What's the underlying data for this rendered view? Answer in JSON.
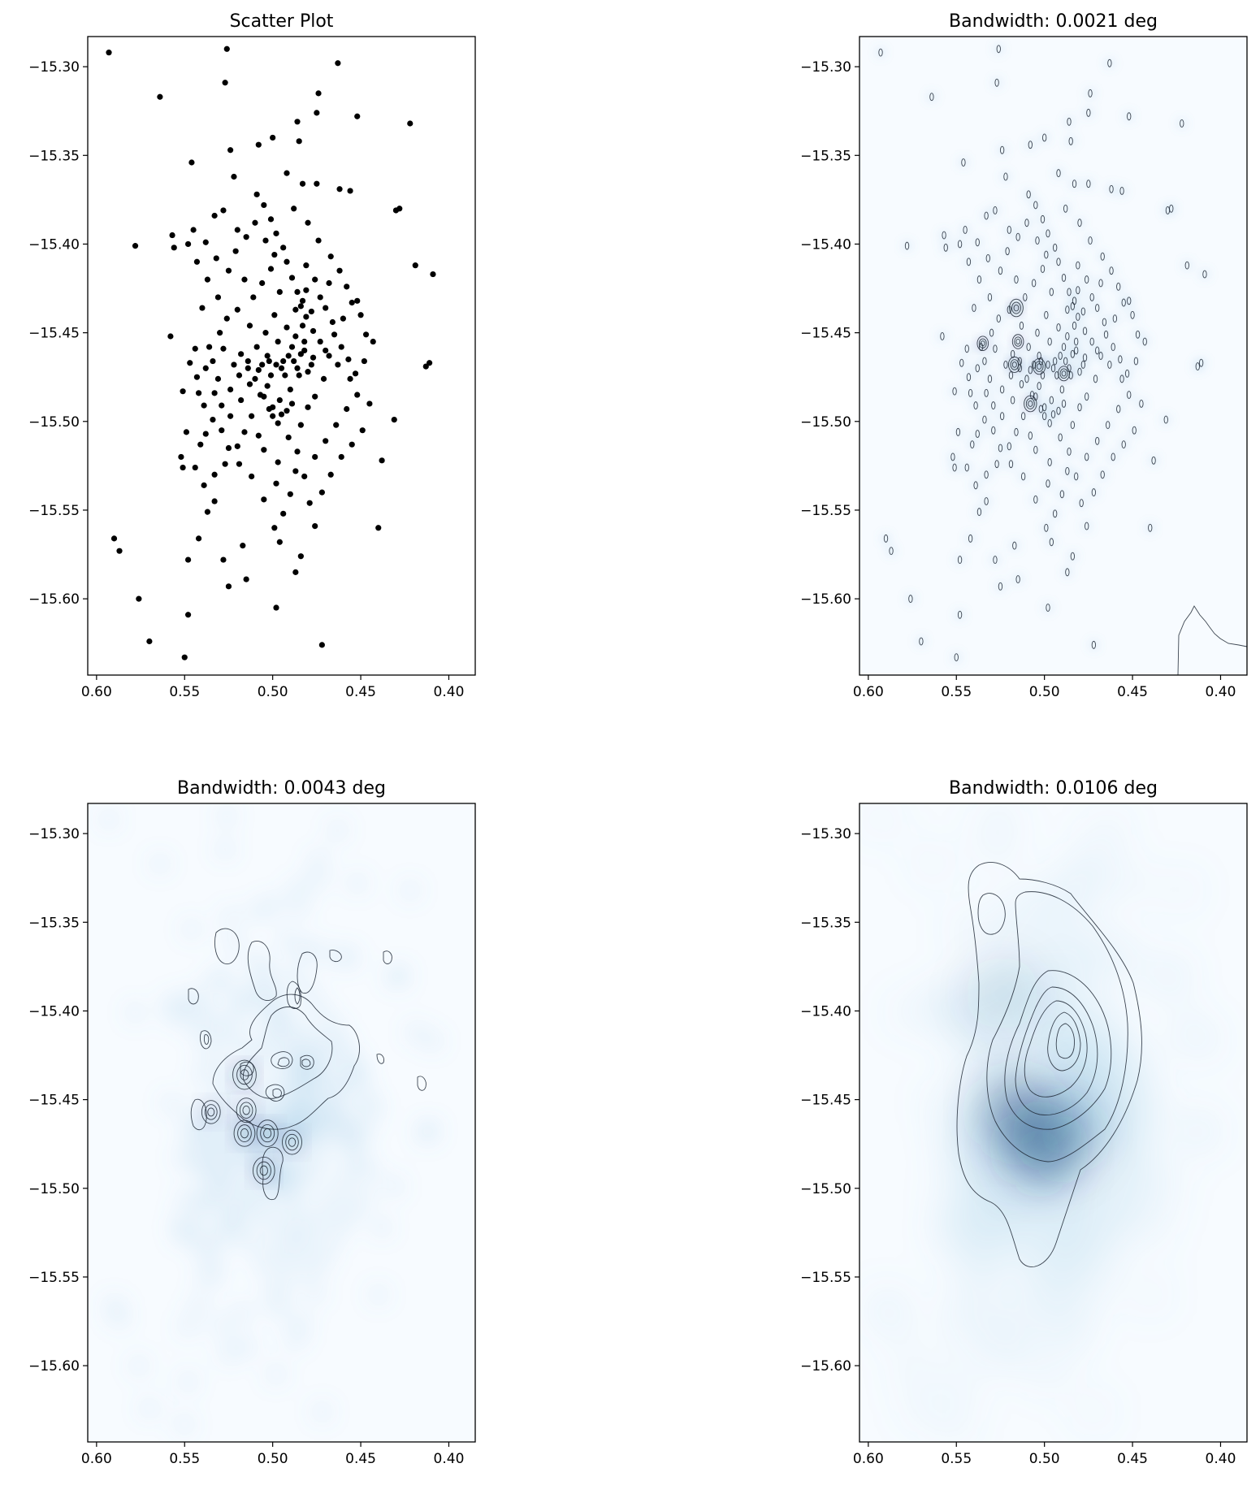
{
  "chart_data": [
    {
      "id": "scatter",
      "type": "scatter",
      "title": "Scatter Plot",
      "xlabel": "",
      "ylabel": "",
      "xlim": [
        0.605,
        0.385
      ],
      "ylim": [
        -15.643,
        -15.283
      ],
      "xticks": [
        0.6,
        0.55,
        0.5,
        0.45,
        0.4
      ],
      "xtick_labels": [
        "0.60",
        "0.55",
        "0.50",
        "0.45",
        "0.40"
      ],
      "yticks": [
        -15.3,
        -15.35,
        -15.4,
        -15.45,
        -15.5,
        -15.55,
        -15.6
      ],
      "ytick_labels": [
        "−15.30",
        "−15.35",
        "−15.40",
        "−15.45",
        "−15.50",
        "−15.55",
        "−15.60"
      ],
      "points_xy": [
        [
          0.593,
          -15.292
        ],
        [
          0.564,
          -15.317
        ],
        [
          0.526,
          -15.29
        ],
        [
          0.527,
          -15.309
        ],
        [
          0.463,
          -15.298
        ],
        [
          0.474,
          -15.315
        ],
        [
          0.475,
          -15.326
        ],
        [
          0.452,
          -15.328
        ],
        [
          0.422,
          -15.332
        ],
        [
          0.486,
          -15.331
        ],
        [
          0.485,
          -15.342
        ],
        [
          0.5,
          -15.34
        ],
        [
          0.508,
          -15.344
        ],
        [
          0.524,
          -15.347
        ],
        [
          0.546,
          -15.354
        ],
        [
          0.492,
          -15.36
        ],
        [
          0.522,
          -15.362
        ],
        [
          0.483,
          -15.366
        ],
        [
          0.475,
          -15.366
        ],
        [
          0.462,
          -15.369
        ],
        [
          0.456,
          -15.37
        ],
        [
          0.578,
          -15.401
        ],
        [
          0.59,
          -15.566
        ],
        [
          0.587,
          -15.573
        ],
        [
          0.576,
          -15.6
        ],
        [
          0.57,
          -15.624
        ],
        [
          0.548,
          -15.609
        ],
        [
          0.55,
          -15.633
        ],
        [
          0.472,
          -15.626
        ],
        [
          0.498,
          -15.605
        ],
        [
          0.548,
          -15.578
        ],
        [
          0.525,
          -15.593
        ],
        [
          0.515,
          -15.589
        ],
        [
          0.487,
          -15.585
        ],
        [
          0.484,
          -15.576
        ],
        [
          0.517,
          -15.57
        ],
        [
          0.528,
          -15.578
        ],
        [
          0.496,
          -15.568
        ],
        [
          0.44,
          -15.56
        ],
        [
          0.476,
          -15.559
        ],
        [
          0.499,
          -15.56
        ],
        [
          0.494,
          -15.552
        ],
        [
          0.533,
          -15.545
        ],
        [
          0.537,
          -15.551
        ],
        [
          0.542,
          -15.566
        ],
        [
          0.411,
          -15.467
        ],
        [
          0.413,
          -15.469
        ],
        [
          0.409,
          -15.417
        ],
        [
          0.419,
          -15.412
        ],
        [
          0.43,
          -15.381
        ],
        [
          0.428,
          -15.38
        ],
        [
          0.431,
          -15.499
        ],
        [
          0.438,
          -15.522
        ],
        [
          0.447,
          -15.451
        ],
        [
          0.443,
          -15.455
        ],
        [
          0.45,
          -15.44
        ],
        [
          0.452,
          -15.432
        ],
        [
          0.558,
          -15.452
        ],
        [
          0.557,
          -15.395
        ],
        [
          0.556,
          -15.402
        ],
        [
          0.54,
          -15.436
        ],
        [
          0.544,
          -15.459
        ],
        [
          0.551,
          -15.483
        ],
        [
          0.552,
          -15.52
        ],
        [
          0.551,
          -15.526
        ],
        [
          0.538,
          -15.507
        ],
        [
          0.541,
          -15.513
        ],
        [
          0.533,
          -15.484
        ],
        [
          0.531,
          -15.476
        ],
        [
          0.533,
          -15.384
        ],
        [
          0.528,
          -15.381
        ],
        [
          0.52,
          -15.392
        ],
        [
          0.516,
          -15.42
        ],
        [
          0.52,
          -15.437
        ],
        [
          0.513,
          -15.446
        ],
        [
          0.518,
          -15.462
        ],
        [
          0.506,
          -15.468
        ],
        [
          0.503,
          -15.48
        ],
        [
          0.5,
          -15.492
        ],
        [
          0.495,
          -15.496
        ],
        [
          0.508,
          -15.508
        ],
        [
          0.505,
          -15.516
        ],
        [
          0.497,
          -15.523
        ],
        [
          0.487,
          -15.528
        ],
        [
          0.484,
          -15.502
        ],
        [
          0.48,
          -15.492
        ],
        [
          0.476,
          -15.486
        ],
        [
          0.471,
          -15.476
        ],
        [
          0.468,
          -15.463
        ],
        [
          0.473,
          -15.455
        ],
        [
          0.477,
          -15.449
        ],
        [
          0.481,
          -15.441
        ],
        [
          0.484,
          -15.435
        ],
        [
          0.486,
          -15.427
        ],
        [
          0.489,
          -15.419
        ],
        [
          0.492,
          -15.41
        ],
        [
          0.494,
          -15.402
        ],
        [
          0.498,
          -15.394
        ],
        [
          0.501,
          -15.386
        ],
        [
          0.505,
          -15.378
        ],
        [
          0.509,
          -15.372
        ],
        [
          0.488,
          -15.38
        ],
        [
          0.48,
          -15.388
        ],
        [
          0.474,
          -15.398
        ],
        [
          0.467,
          -15.407
        ],
        [
          0.462,
          -15.415
        ],
        [
          0.458,
          -15.424
        ],
        [
          0.455,
          -15.433
        ],
        [
          0.46,
          -15.442
        ],
        [
          0.465,
          -15.451
        ],
        [
          0.47,
          -15.46
        ],
        [
          0.463,
          -15.468
        ],
        [
          0.456,
          -15.476
        ],
        [
          0.452,
          -15.485
        ],
        [
          0.458,
          -15.493
        ],
        [
          0.464,
          -15.502
        ],
        [
          0.47,
          -15.511
        ],
        [
          0.476,
          -15.52
        ],
        [
          0.482,
          -15.531
        ],
        [
          0.49,
          -15.541
        ],
        [
          0.498,
          -15.535
        ],
        [
          0.505,
          -15.544
        ],
        [
          0.512,
          -15.531
        ],
        [
          0.519,
          -15.524
        ],
        [
          0.525,
          -15.515
        ],
        [
          0.529,
          -15.505
        ],
        [
          0.524,
          -15.497
        ],
        [
          0.518,
          -15.488
        ],
        [
          0.513,
          -15.479
        ],
        [
          0.508,
          -15.471
        ],
        [
          0.503,
          -15.463
        ],
        [
          0.497,
          -15.455
        ],
        [
          0.492,
          -15.447
        ],
        [
          0.487,
          -15.452
        ],
        [
          0.482,
          -15.46
        ],
        [
          0.478,
          -15.468
        ],
        [
          0.485,
          -15.474
        ],
        [
          0.49,
          -15.482
        ],
        [
          0.496,
          -15.488
        ],
        [
          0.501,
          -15.474
        ],
        [
          0.494,
          -15.466
        ],
        [
          0.489,
          -15.458
        ],
        [
          0.483,
          -15.446
        ],
        [
          0.478,
          -15.438
        ],
        [
          0.473,
          -15.43
        ],
        [
          0.468,
          -15.422
        ],
        [
          0.511,
          -15.43
        ],
        [
          0.506,
          -15.422
        ],
        [
          0.501,
          -15.414
        ],
        [
          0.496,
          -15.427
        ],
        [
          0.499,
          -15.44
        ],
        [
          0.504,
          -15.45
        ],
        [
          0.509,
          -15.458
        ],
        [
          0.514,
          -15.466
        ],
        [
          0.519,
          -15.474
        ],
        [
          0.524,
          -15.482
        ],
        [
          0.529,
          -15.491
        ],
        [
          0.534,
          -15.499
        ],
        [
          0.539,
          -15.491
        ],
        [
          0.543,
          -15.475
        ],
        [
          0.547,
          -15.467
        ],
        [
          0.536,
          -15.458
        ],
        [
          0.53,
          -15.45
        ],
        [
          0.526,
          -15.442
        ],
        [
          0.531,
          -15.43
        ],
        [
          0.537,
          -15.42
        ],
        [
          0.543,
          -15.41
        ],
        [
          0.548,
          -15.4
        ],
        [
          0.545,
          -15.392
        ],
        [
          0.538,
          -15.399
        ],
        [
          0.532,
          -15.408
        ],
        [
          0.525,
          -15.415
        ],
        [
          0.521,
          -15.404
        ],
        [
          0.515,
          -15.396
        ],
        [
          0.51,
          -15.388
        ],
        [
          0.504,
          -15.398
        ],
        [
          0.499,
          -15.406
        ],
        [
          0.481,
          -15.412
        ],
        [
          0.476,
          -15.42
        ],
        [
          0.47,
          -15.436
        ],
        [
          0.466,
          -15.444
        ],
        [
          0.461,
          -15.458
        ],
        [
          0.457,
          -15.465
        ],
        [
          0.453,
          -15.473
        ],
        [
          0.448,
          -15.466
        ],
        [
          0.445,
          -15.49
        ],
        [
          0.449,
          -15.505
        ],
        [
          0.455,
          -15.513
        ],
        [
          0.461,
          -15.52
        ],
        [
          0.467,
          -15.53
        ],
        [
          0.472,
          -15.54
        ],
        [
          0.479,
          -15.546
        ],
        [
          0.486,
          -15.517
        ],
        [
          0.491,
          -15.509
        ],
        [
          0.497,
          -15.501
        ],
        [
          0.502,
          -15.493
        ],
        [
          0.507,
          -15.485
        ],
        [
          0.512,
          -15.497
        ],
        [
          0.516,
          -15.506
        ],
        [
          0.52,
          -15.514
        ],
        [
          0.527,
          -15.524
        ],
        [
          0.533,
          -15.53
        ],
        [
          0.539,
          -15.536
        ],
        [
          0.544,
          -15.526
        ],
        [
          0.549,
          -15.506
        ],
        [
          0.488,
          -15.466
        ],
        [
          0.486,
          -15.47
        ],
        [
          0.484,
          -15.462
        ],
        [
          0.491,
          -15.463
        ],
        [
          0.495,
          -15.47
        ],
        [
          0.498,
          -15.468
        ],
        [
          0.502,
          -15.466
        ],
        [
          0.493,
          -15.474
        ],
        [
          0.48,
          -15.472
        ],
        [
          0.477,
          -15.464
        ],
        [
          0.482,
          -15.455
        ],
        [
          0.487,
          -15.437
        ],
        [
          0.483,
          -15.432
        ],
        [
          0.481,
          -15.426
        ],
        [
          0.489,
          -15.49
        ],
        [
          0.492,
          -15.494
        ],
        [
          0.5,
          -15.497
        ],
        [
          0.505,
          -15.486
        ],
        [
          0.51,
          -15.476
        ],
        [
          0.514,
          -15.47
        ],
        [
          0.522,
          -15.468
        ],
        [
          0.528,
          -15.459
        ],
        [
          0.534,
          -15.466
        ],
        [
          0.538,
          -15.47
        ],
        [
          0.542,
          -15.484
        ]
      ]
    },
    {
      "id": "kde-0021",
      "type": "heatmap",
      "title": "Bandwidth: 0.0021 deg",
      "bandwidth": 0.0021,
      "xlim": [
        0.605,
        0.385
      ],
      "ylim": [
        -15.643,
        -15.283
      ],
      "xticks": [
        0.6,
        0.55,
        0.5,
        0.45,
        0.4
      ],
      "xtick_labels": [
        "0.60",
        "0.55",
        "0.50",
        "0.45",
        "0.40"
      ],
      "yticks": [
        -15.3,
        -15.35,
        -15.4,
        -15.45,
        -15.5,
        -15.55,
        -15.6
      ],
      "ytick_labels": [
        "−15.30",
        "−15.35",
        "−15.40",
        "−15.45",
        "−15.50",
        "−15.55",
        "−15.60"
      ],
      "colormap": "Blues",
      "peaks": [
        {
          "x": 0.516,
          "y": -15.436,
          "density": 1.0
        },
        {
          "x": 0.503,
          "y": -15.469,
          "density": 0.75
        },
        {
          "x": 0.517,
          "y": -15.468,
          "density": 0.72
        },
        {
          "x": 0.508,
          "y": -15.49,
          "density": 0.8
        },
        {
          "x": 0.489,
          "y": -15.473,
          "density": 0.6
        },
        {
          "x": 0.535,
          "y": -15.456,
          "density": 0.55
        },
        {
          "x": 0.515,
          "y": -15.455,
          "density": 0.55
        }
      ]
    },
    {
      "id": "kde-0043",
      "type": "heatmap",
      "title": "Bandwidth: 0.0043 deg",
      "bandwidth": 0.0043,
      "xlim": [
        0.605,
        0.385
      ],
      "ylim": [
        -15.643,
        -15.283
      ],
      "xticks": [
        0.6,
        0.55,
        0.5,
        0.45,
        0.4
      ],
      "xtick_labels": [
        "0.60",
        "0.55",
        "0.50",
        "0.45",
        "0.40"
      ],
      "yticks": [
        -15.3,
        -15.35,
        -15.4,
        -15.45,
        -15.5,
        -15.55,
        -15.6
      ],
      "ytick_labels": [
        "−15.30",
        "−15.35",
        "−15.40",
        "−15.45",
        "−15.50",
        "−15.55",
        "−15.60"
      ],
      "colormap": "Blues",
      "peaks": [
        {
          "x": 0.516,
          "y": -15.436,
          "density": 1.0
        },
        {
          "x": 0.503,
          "y": -15.469,
          "density": 0.78
        },
        {
          "x": 0.516,
          "y": -15.469,
          "density": 0.75
        },
        {
          "x": 0.505,
          "y": -15.49,
          "density": 0.82
        },
        {
          "x": 0.489,
          "y": -15.474,
          "density": 0.6
        },
        {
          "x": 0.535,
          "y": -15.457,
          "density": 0.5
        },
        {
          "x": 0.515,
          "y": -15.456,
          "density": 0.6
        }
      ]
    },
    {
      "id": "kde-0106",
      "type": "heatmap",
      "title": "Bandwidth: 0.0106 deg",
      "bandwidth": 0.0106,
      "xlim": [
        0.605,
        0.385
      ],
      "ylim": [
        -15.643,
        -15.283
      ],
      "xticks": [
        0.6,
        0.55,
        0.5,
        0.45,
        0.4
      ],
      "xtick_labels": [
        "0.60",
        "0.55",
        "0.50",
        "0.45",
        "0.40"
      ],
      "yticks": [
        -15.3,
        -15.35,
        -15.4,
        -15.45,
        -15.5,
        -15.55,
        -15.6
      ],
      "ytick_labels": [
        "−15.30",
        "−15.35",
        "−15.40",
        "−15.45",
        "−15.50",
        "−15.55",
        "−15.60"
      ],
      "colormap": "Blues",
      "peaks": [
        {
          "x": 0.515,
          "y": -15.457,
          "density": 1.0
        },
        {
          "x": 0.503,
          "y": -15.478,
          "density": 0.85
        },
        {
          "x": 0.49,
          "y": -15.47,
          "density": 0.6
        },
        {
          "x": 0.524,
          "y": -15.39,
          "density": 0.25
        }
      ]
    }
  ]
}
